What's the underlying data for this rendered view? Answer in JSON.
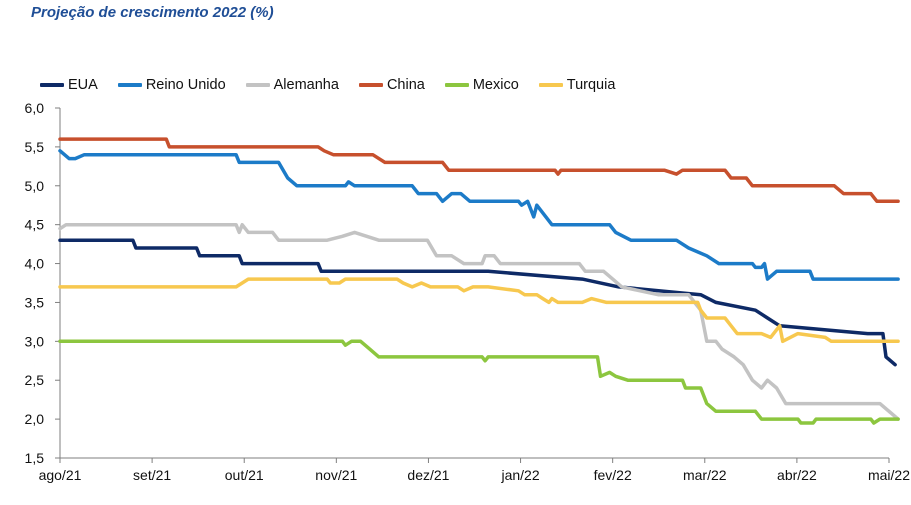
{
  "title": "Projeção de crescimento 2022 (%)",
  "chart_data": {
    "type": "line",
    "title": "Projeção de crescimento 2022 (%)",
    "xlabel": "",
    "ylabel": "",
    "ylim": [
      1.5,
      6.0
    ],
    "yticks": [
      "6,0",
      "5,5",
      "5,0",
      "4,5",
      "4,0",
      "3,5",
      "3,0",
      "2,5",
      "2,0",
      "1,5"
    ],
    "ytick_values": [
      6.0,
      5.5,
      5.0,
      4.5,
      4.0,
      3.5,
      3.0,
      2.5,
      2.0,
      1.5
    ],
    "xticks": [
      "ago/21",
      "set/21",
      "out/21",
      "nov/21",
      "dez/21",
      "jan/22",
      "fev/22",
      "mar/22",
      "abr/22",
      "mai/22"
    ],
    "x_range": [
      "2021-08-01",
      "2022-05-01"
    ],
    "grid": false,
    "legend_position": "top",
    "series": [
      {
        "name": "EUA",
        "color": "#0e2a66",
        "points": [
          [
            "2021-08-01",
            4.3
          ],
          [
            "2021-08-20",
            4.3
          ],
          [
            "2021-08-25",
            4.3
          ],
          [
            "2021-08-26",
            4.2
          ],
          [
            "2021-09-15",
            4.2
          ],
          [
            "2021-09-16",
            4.1
          ],
          [
            "2021-09-29",
            4.1
          ],
          [
            "2021-09-30",
            4.0
          ],
          [
            "2021-10-25",
            4.0
          ],
          [
            "2021-10-26",
            3.9
          ],
          [
            "2021-11-20",
            3.9
          ],
          [
            "2021-12-20",
            3.9
          ],
          [
            "2022-01-20",
            3.8
          ],
          [
            "2022-02-01",
            3.7
          ],
          [
            "2022-02-28",
            3.6
          ],
          [
            "2022-03-05",
            3.5
          ],
          [
            "2022-03-18",
            3.4
          ],
          [
            "2022-03-22",
            3.3
          ],
          [
            "2022-03-26",
            3.2
          ],
          [
            "2022-04-24",
            3.1
          ],
          [
            "2022-04-29",
            3.1
          ],
          [
            "2022-04-30",
            2.8
          ],
          [
            "2022-05-03",
            2.7
          ]
        ]
      },
      {
        "name": "Reino Unido",
        "color": "#1c7bc8",
        "points": [
          [
            "2021-08-01",
            5.45
          ],
          [
            "2021-08-04",
            5.35
          ],
          [
            "2021-08-06",
            5.35
          ],
          [
            "2021-08-09",
            5.4
          ],
          [
            "2021-09-28",
            5.4
          ],
          [
            "2021-09-29",
            5.3
          ],
          [
            "2021-10-12",
            5.3
          ],
          [
            "2021-10-15",
            5.1
          ],
          [
            "2021-10-18",
            5.0
          ],
          [
            "2021-11-03",
            5.0
          ],
          [
            "2021-11-04",
            5.05
          ],
          [
            "2021-11-06",
            5.0
          ],
          [
            "2021-11-25",
            5.0
          ],
          [
            "2021-11-27",
            4.9
          ],
          [
            "2021-12-03",
            4.9
          ],
          [
            "2021-12-05",
            4.8
          ],
          [
            "2021-12-08",
            4.9
          ],
          [
            "2021-12-11",
            4.9
          ],
          [
            "2021-12-14",
            4.8
          ],
          [
            "2021-12-30",
            4.8
          ],
          [
            "2021-12-31",
            4.75
          ],
          [
            "2022-01-02",
            4.8
          ],
          [
            "2022-01-03",
            4.7
          ],
          [
            "2022-01-04",
            4.6
          ],
          [
            "2022-01-05",
            4.75
          ],
          [
            "2022-01-08",
            4.6
          ],
          [
            "2022-01-10",
            4.5
          ],
          [
            "2022-01-29",
            4.5
          ],
          [
            "2022-01-31",
            4.4
          ],
          [
            "2022-02-05",
            4.3
          ],
          [
            "2022-02-20",
            4.3
          ],
          [
            "2022-02-24",
            4.2
          ],
          [
            "2022-03-02",
            4.1
          ],
          [
            "2022-03-06",
            4.0
          ],
          [
            "2022-03-17",
            4.0
          ],
          [
            "2022-03-18",
            3.95
          ],
          [
            "2022-03-20",
            3.95
          ],
          [
            "2022-03-21",
            4.0
          ],
          [
            "2022-03-22",
            3.8
          ],
          [
            "2022-03-25",
            3.9
          ],
          [
            "2022-04-05",
            3.9
          ],
          [
            "2022-04-06",
            3.8
          ],
          [
            "2022-05-04",
            3.8
          ]
        ]
      },
      {
        "name": "Alemanha",
        "color": "#c3c3c3",
        "points": [
          [
            "2021-08-01",
            4.45
          ],
          [
            "2021-08-03",
            4.5
          ],
          [
            "2021-09-28",
            4.5
          ],
          [
            "2021-09-29",
            4.4
          ],
          [
            "2021-09-30",
            4.5
          ],
          [
            "2021-10-02",
            4.4
          ],
          [
            "2021-10-10",
            4.4
          ],
          [
            "2021-10-12",
            4.3
          ],
          [
            "2021-10-28",
            4.3
          ],
          [
            "2021-11-02",
            4.35
          ],
          [
            "2021-11-06",
            4.4
          ],
          [
            "2021-11-10",
            4.35
          ],
          [
            "2021-11-14",
            4.3
          ],
          [
            "2021-11-30",
            4.3
          ],
          [
            "2021-12-03",
            4.1
          ],
          [
            "2021-12-08",
            4.1
          ],
          [
            "2021-12-12",
            4.0
          ],
          [
            "2021-12-18",
            4.0
          ],
          [
            "2021-12-19",
            4.1
          ],
          [
            "2021-12-22",
            4.1
          ],
          [
            "2021-12-24",
            4.0
          ],
          [
            "2022-01-19",
            4.0
          ],
          [
            "2022-01-21",
            3.9
          ],
          [
            "2022-01-27",
            3.9
          ],
          [
            "2022-01-30",
            3.8
          ],
          [
            "2022-02-02",
            3.7
          ],
          [
            "2022-02-14",
            3.6
          ],
          [
            "2022-02-24",
            3.6
          ],
          [
            "2022-02-28",
            3.4
          ],
          [
            "2022-03-02",
            3.0
          ],
          [
            "2022-03-05",
            3.0
          ],
          [
            "2022-03-07",
            2.9
          ],
          [
            "2022-03-11",
            2.8
          ],
          [
            "2022-03-14",
            2.7
          ],
          [
            "2022-03-17",
            2.5
          ],
          [
            "2022-03-20",
            2.4
          ],
          [
            "2022-03-22",
            2.5
          ],
          [
            "2022-03-25",
            2.4
          ],
          [
            "2022-03-28",
            2.2
          ],
          [
            "2022-04-28",
            2.2
          ],
          [
            "2022-05-04",
            2.0
          ]
        ]
      },
      {
        "name": "China",
        "color": "#c7502d",
        "points": [
          [
            "2021-08-01",
            5.6
          ],
          [
            "2021-09-05",
            5.6
          ],
          [
            "2021-09-06",
            5.5
          ],
          [
            "2021-10-25",
            5.5
          ],
          [
            "2021-10-27",
            5.45
          ],
          [
            "2021-10-30",
            5.4
          ],
          [
            "2021-11-12",
            5.4
          ],
          [
            "2021-11-16",
            5.3
          ],
          [
            "2021-12-05",
            5.3
          ],
          [
            "2021-12-07",
            5.2
          ],
          [
            "2022-01-11",
            5.2
          ],
          [
            "2022-01-12",
            5.15
          ],
          [
            "2022-01-13",
            5.2
          ],
          [
            "2022-02-16",
            5.2
          ],
          [
            "2022-02-20",
            5.15
          ],
          [
            "2022-02-22",
            5.2
          ],
          [
            "2022-03-08",
            5.2
          ],
          [
            "2022-03-10",
            5.1
          ],
          [
            "2022-03-15",
            5.1
          ],
          [
            "2022-03-17",
            5.0
          ],
          [
            "2022-04-13",
            5.0
          ],
          [
            "2022-04-16",
            4.9
          ],
          [
            "2022-04-25",
            4.9
          ],
          [
            "2022-04-27",
            4.8
          ],
          [
            "2022-05-04",
            4.8
          ]
        ]
      },
      {
        "name": "Mexico",
        "color": "#8cc63f",
        "points": [
          [
            "2021-08-01",
            3.0
          ],
          [
            "2021-11-02",
            3.0
          ],
          [
            "2021-11-03",
            2.95
          ],
          [
            "2021-11-05",
            3.0
          ],
          [
            "2021-11-08",
            3.0
          ],
          [
            "2021-11-11",
            2.9
          ],
          [
            "2021-11-14",
            2.8
          ],
          [
            "2021-12-18",
            2.8
          ],
          [
            "2021-12-19",
            2.75
          ],
          [
            "2021-12-20",
            2.8
          ],
          [
            "2022-01-25",
            2.8
          ],
          [
            "2022-01-26",
            2.55
          ],
          [
            "2022-01-29",
            2.6
          ],
          [
            "2022-01-31",
            2.55
          ],
          [
            "2022-02-04",
            2.5
          ],
          [
            "2022-02-22",
            2.5
          ],
          [
            "2022-02-23",
            2.4
          ],
          [
            "2022-02-28",
            2.4
          ],
          [
            "2022-03-02",
            2.2
          ],
          [
            "2022-03-05",
            2.1
          ],
          [
            "2022-03-18",
            2.1
          ],
          [
            "2022-03-20",
            2.0
          ],
          [
            "2022-04-01",
            2.0
          ],
          [
            "2022-04-02",
            1.95
          ],
          [
            "2022-04-06",
            1.95
          ],
          [
            "2022-04-07",
            2.0
          ],
          [
            "2022-04-25",
            2.0
          ],
          [
            "2022-04-26",
            1.95
          ],
          [
            "2022-04-28",
            2.0
          ],
          [
            "2022-05-04",
            2.0
          ]
        ]
      },
      {
        "name": "Turquia",
        "color": "#f7c84f",
        "points": [
          [
            "2021-08-01",
            3.7
          ],
          [
            "2021-09-28",
            3.7
          ],
          [
            "2021-09-30",
            3.75
          ],
          [
            "2021-10-02",
            3.8
          ],
          [
            "2021-10-28",
            3.8
          ],
          [
            "2021-10-29",
            3.75
          ],
          [
            "2021-11-01",
            3.75
          ],
          [
            "2021-11-03",
            3.8
          ],
          [
            "2021-11-20",
            3.8
          ],
          [
            "2021-11-22",
            3.75
          ],
          [
            "2021-11-25",
            3.7
          ],
          [
            "2021-11-28",
            3.75
          ],
          [
            "2021-12-01",
            3.7
          ],
          [
            "2021-12-10",
            3.7
          ],
          [
            "2021-12-12",
            3.65
          ],
          [
            "2021-12-15",
            3.7
          ],
          [
            "2021-12-20",
            3.7
          ],
          [
            "2021-12-30",
            3.65
          ],
          [
            "2022-01-01",
            3.6
          ],
          [
            "2022-01-05",
            3.6
          ],
          [
            "2022-01-07",
            3.55
          ],
          [
            "2022-01-09",
            3.5
          ],
          [
            "2022-01-10",
            3.55
          ],
          [
            "2022-01-12",
            3.5
          ],
          [
            "2022-01-20",
            3.5
          ],
          [
            "2022-01-23",
            3.55
          ],
          [
            "2022-01-28",
            3.5
          ],
          [
            "2022-02-27",
            3.5
          ],
          [
            "2022-02-28",
            3.4
          ],
          [
            "2022-03-02",
            3.3
          ],
          [
            "2022-03-08",
            3.3
          ],
          [
            "2022-03-10",
            3.2
          ],
          [
            "2022-03-12",
            3.1
          ],
          [
            "2022-03-20",
            3.1
          ],
          [
            "2022-03-23",
            3.05
          ],
          [
            "2022-03-26",
            3.2
          ],
          [
            "2022-03-27",
            3.0
          ],
          [
            "2022-04-01",
            3.1
          ],
          [
            "2022-04-10",
            3.05
          ],
          [
            "2022-04-12",
            3.0
          ],
          [
            "2022-05-04",
            3.0
          ]
        ]
      }
    ]
  }
}
